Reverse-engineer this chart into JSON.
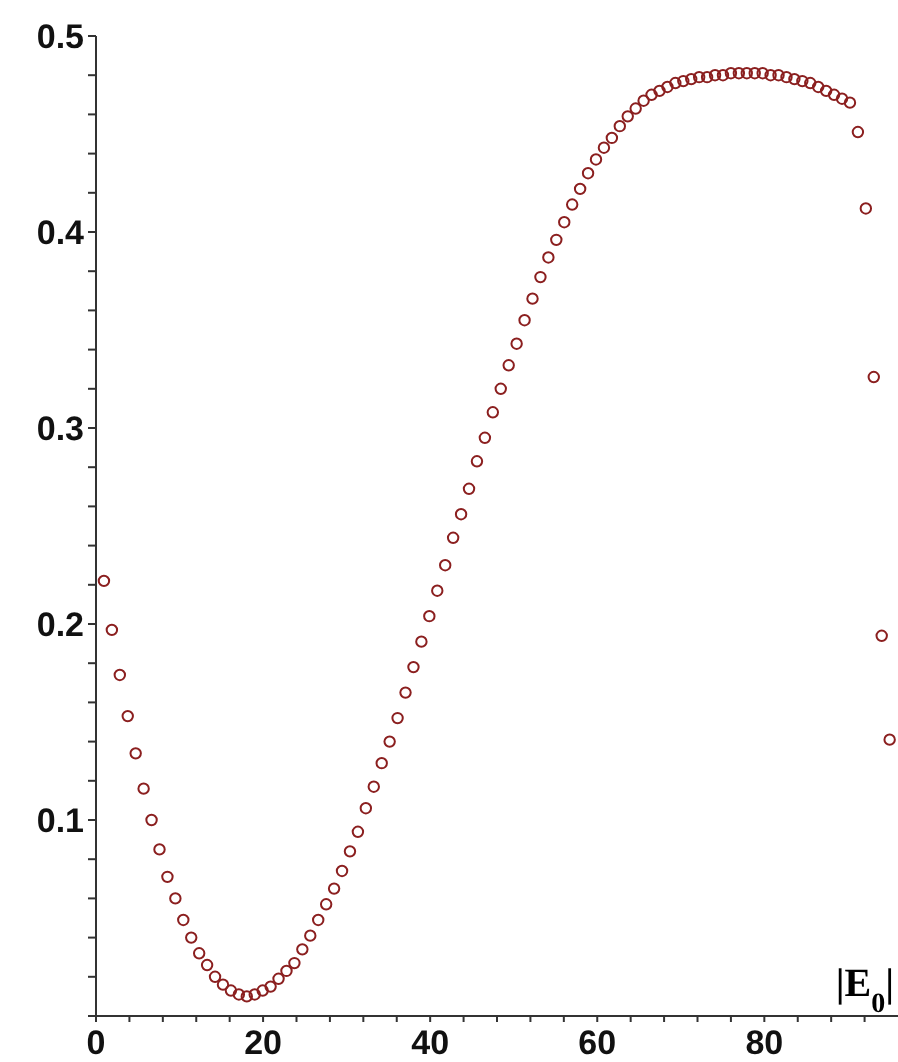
{
  "chart_data": {
    "type": "scatter",
    "xlabel": "|E$_{0}$|",
    "marker": "circle",
    "grid": false,
    "legend": false,
    "xlim": [
      0,
      96
    ],
    "xticks": [
      0,
      {
        "value": 4,
        "label": null
      },
      {
        "value": 8,
        "label": null
      },
      {
        "value": 12,
        "label": null
      },
      {
        "value": 16,
        "label": null
      },
      20,
      {
        "value": 24,
        "label": null
      },
      {
        "value": 28,
        "label": null
      },
      {
        "value": 32,
        "label": null
      },
      {
        "value": 36,
        "label": null
      },
      40,
      {
        "value": 44,
        "label": null
      },
      {
        "value": 48,
        "label": null
      },
      {
        "value": 52,
        "label": null
      },
      {
        "value": 56,
        "label": null
      },
      60,
      {
        "value": 64,
        "label": null
      },
      {
        "value": 68,
        "label": null
      },
      {
        "value": 72,
        "label": null
      },
      {
        "value": 76,
        "label": null
      },
      80,
      {
        "value": 84,
        "label": null
      },
      {
        "value": 88,
        "label": null
      },
      {
        "value": 92,
        "label": null
      }
    ],
    "ylim": [
      0,
      0.5
    ],
    "yticks": [
      {
        "value": 0,
        "label": null
      },
      {
        "value": 0.02,
        "label": null
      },
      {
        "value": 0.04,
        "label": null
      },
      {
        "value": 0.06,
        "label": null
      },
      {
        "value": 0.08,
        "label": null
      },
      0.1,
      {
        "value": 0.12,
        "label": null
      },
      {
        "value": 0.14,
        "label": null
      },
      {
        "value": 0.16,
        "label": null
      },
      {
        "value": 0.18,
        "label": null
      },
      0.2,
      {
        "value": 0.22,
        "label": null
      },
      {
        "value": 0.24,
        "label": null
      },
      {
        "value": 0.26,
        "label": null
      },
      {
        "value": 0.28,
        "label": null
      },
      0.3,
      {
        "value": 0.32,
        "label": null
      },
      {
        "value": 0.34,
        "label": null
      },
      {
        "value": 0.36,
        "label": null
      },
      {
        "value": 0.38,
        "label": null
      },
      0.4,
      {
        "value": 0.42,
        "label": null
      },
      {
        "value": 0.44,
        "label": null
      },
      {
        "value": 0.46,
        "label": null
      },
      {
        "value": 0.48,
        "label": null
      },
      0.5
    ],
    "series": [
      {
        "color": "#8b1f1f",
        "x": [
          0.95,
          1.9,
          2.85,
          3.8,
          4.75,
          5.7,
          6.65,
          7.6,
          8.55,
          9.5,
          10.45,
          11.4,
          12.35,
          13.3,
          14.25,
          15.2,
          16.15,
          17.1,
          18.05,
          19,
          19.95,
          20.9,
          21.85,
          22.8,
          23.75,
          24.7,
          25.65,
          26.6,
          27.55,
          28.5,
          29.45,
          30.4,
          31.35,
          32.3,
          33.25,
          34.2,
          35.15,
          36.1,
          37.05,
          38,
          38.95,
          39.9,
          40.85,
          41.8,
          42.75,
          43.7,
          44.65,
          45.6,
          46.55,
          47.5,
          48.45,
          49.4,
          50.35,
          51.3,
          52.25,
          53.2,
          54.15,
          55.1,
          56.05,
          57,
          57.95,
          58.9,
          59.85,
          60.8,
          61.75,
          62.7,
          63.65,
          64.6,
          65.55,
          66.5,
          67.45,
          68.4,
          69.35,
          70.3,
          71.25,
          72.2,
          73.15,
          74.1,
          75.05,
          76,
          76.95,
          77.9,
          78.85,
          79.8,
          80.75,
          81.7,
          82.65,
          83.6,
          84.55,
          85.5,
          86.45,
          87.4,
          88.35,
          89.3,
          90.25,
          91.2,
          92.15,
          93.1,
          94.05,
          95
        ],
        "values": [
          0.222,
          0.197,
          0.174,
          0.153,
          0.134,
          0.116,
          0.1,
          0.085,
          0.071,
          0.06,
          0.049,
          0.04,
          0.032,
          0.026,
          0.02,
          0.016,
          0.013,
          0.011,
          0.01,
          0.011,
          0.013,
          0.015,
          0.019,
          0.023,
          0.027,
          0.034,
          0.041,
          0.049,
          0.057,
          0.065,
          0.074,
          0.084,
          0.094,
          0.106,
          0.117,
          0.129,
          0.14,
          0.152,
          0.165,
          0.178,
          0.191,
          0.204,
          0.217,
          0.23,
          0.244,
          0.256,
          0.269,
          0.283,
          0.295,
          0.308,
          0.32,
          0.332,
          0.343,
          0.355,
          0.366,
          0.377,
          0.387,
          0.396,
          0.405,
          0.414,
          0.422,
          0.43,
          0.437,
          0.443,
          0.448,
          0.454,
          0.459,
          0.463,
          0.467,
          0.47,
          0.472,
          0.474,
          0.476,
          0.477,
          0.478,
          0.479,
          0.479,
          0.48,
          0.48,
          0.481,
          0.481,
          0.481,
          0.481,
          0.481,
          0.48,
          0.48,
          0.479,
          0.478,
          0.477,
          0.476,
          0.474,
          0.472,
          0.47,
          0.468,
          0.466,
          0.451,
          0.412,
          0.326,
          0.194,
          0.141
        ]
      }
    ]
  }
}
